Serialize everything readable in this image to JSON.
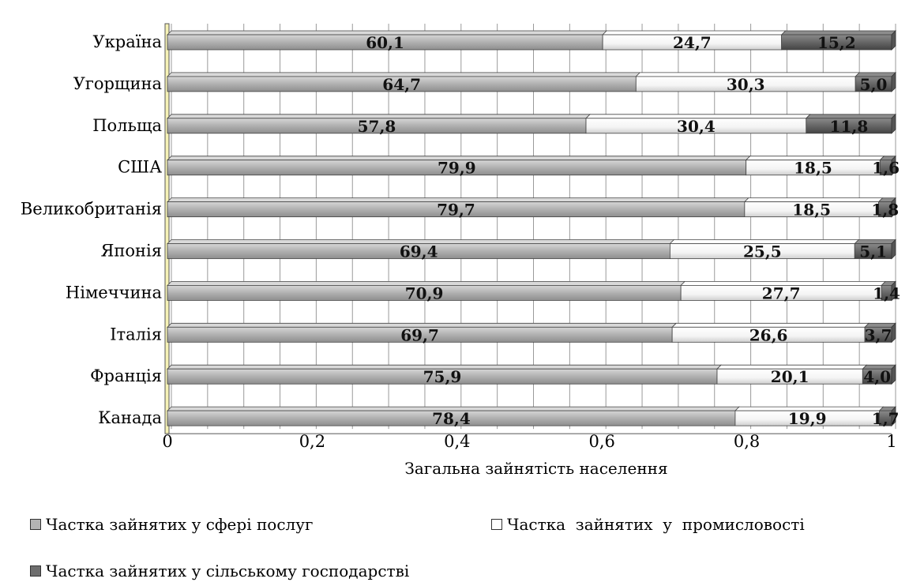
{
  "chart_data": {
    "type": "bar",
    "orientation": "horizontal",
    "stacked": "100%",
    "title": "",
    "xlabel": "Загальна зайнятість населення",
    "ylabel": "",
    "xlim": [
      0,
      1
    ],
    "x_ticks": [
      "0",
      "0,2",
      "0,4",
      "0,6",
      "0,8",
      "1"
    ],
    "grid": true,
    "legend_position": "bottom",
    "categories": [
      "Україна",
      "Угорщина",
      "Польща",
      "США",
      "Великобританія",
      "Японія",
      "Німеччина",
      "Італія",
      "Франція",
      "Канада"
    ],
    "series": [
      {
        "name": "Частка зайнятих у сфері послуг",
        "color": "#b4b4b4",
        "values": [
          60.1,
          64.7,
          57.8,
          79.9,
          79.7,
          69.4,
          70.9,
          69.7,
          75.9,
          78.4
        ],
        "labels": [
          "60,1",
          "64,7",
          "57,8",
          "79,9",
          "79,7",
          "69,4",
          "70,9",
          "69,7",
          "75,9",
          "78,4"
        ]
      },
      {
        "name": "Частка  зайнятих  у  промисловості",
        "color": "#ffffff",
        "values": [
          24.7,
          30.3,
          30.4,
          18.5,
          18.5,
          25.5,
          27.7,
          26.6,
          20.1,
          19.9
        ],
        "labels": [
          "24,7",
          "30,3",
          "30,4",
          "18,5",
          "18,5",
          "25,5",
          "27,7",
          "26,6",
          "20,1",
          "19,9"
        ]
      },
      {
        "name": "Частка зайнятих у сільському господарстві",
        "color": "#6e6e6e",
        "values": [
          15.2,
          5.0,
          11.8,
          1.6,
          1.8,
          5.1,
          1.4,
          3.7,
          4.0,
          1.7
        ],
        "labels": [
          "15,2",
          "5,0",
          "11,8",
          "1,6",
          "1,8",
          "5,1",
          "1,4",
          "3,7",
          "4,0",
          "1,7"
        ]
      }
    ]
  }
}
